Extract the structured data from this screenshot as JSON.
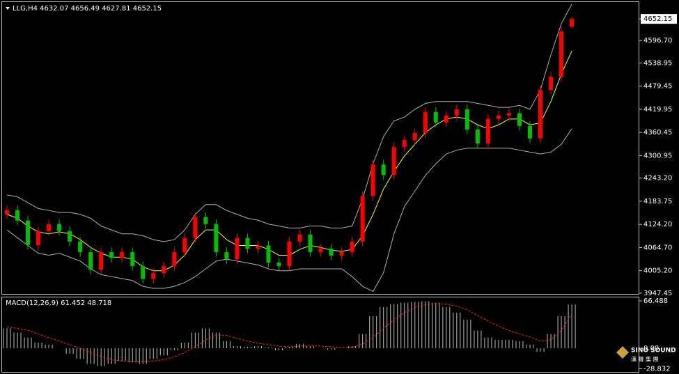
{
  "chart_data": [
    {
      "type": "candlestick",
      "title": "LLG,H4  4632.07 4656.49 4627.81 4652.15",
      "up_color": "#ff0000",
      "down_color": "#00c000",
      "open": [
        4150,
        4161,
        4134,
        4071,
        4107,
        4125,
        4107,
        4080,
        4053,
        4008,
        4053,
        4038,
        4053,
        4017,
        3984,
        3999,
        4017,
        4053,
        4089,
        4143,
        4125,
        4053,
        4035,
        4089,
        4062,
        4070,
        4026,
        4017,
        4080,
        4098,
        4053,
        4062,
        4044,
        4053,
        4080,
        4197,
        4278,
        4251,
        4323,
        4341,
        4359,
        4413,
        4386,
        4404,
        4420,
        4368,
        4332,
        4395,
        4404,
        4410,
        4377,
        4345,
        4470,
        4503,
        4632.07
      ],
      "high": [
        4173,
        4173,
        4146,
        4119,
        4137,
        4137,
        4119,
        4092,
        4065,
        4065,
        4065,
        4065,
        4065,
        4029,
        4011,
        4029,
        4065,
        4101,
        4155,
        4155,
        4137,
        4065,
        4101,
        4101,
        4082,
        4082,
        4038,
        4092,
        4110,
        4110,
        4074,
        4074,
        4065,
        4092,
        4209,
        4290,
        4290,
        4335,
        4353,
        4371,
        4425,
        4425,
        4416,
        4432,
        4432,
        4380,
        4407,
        4416,
        4422,
        4422,
        4389,
        4482,
        4515,
        4632,
        4656.49
      ],
      "low": [
        4138,
        4122,
        4059,
        4059,
        4095,
        4095,
        4068,
        4041,
        3996,
        3996,
        4026,
        4026,
        4005,
        3972,
        3972,
        3987,
        4005,
        4041,
        4077,
        4113,
        4041,
        4023,
        4023,
        4050,
        4050,
        4014,
        4005,
        4005,
        4068,
        4041,
        4041,
        4032,
        4032,
        4041,
        4068,
        4185,
        4239,
        4239,
        4311,
        4329,
        4347,
        4374,
        4374,
        4392,
        4356,
        4320,
        4320,
        4383,
        4392,
        4365,
        4333,
        4333,
        4458,
        4491,
        4627.81
      ],
      "close": [
        4161,
        4134,
        4071,
        4107,
        4125,
        4107,
        4080,
        4053,
        4008,
        4053,
        4038,
        4053,
        4017,
        3984,
        3999,
        4017,
        4053,
        4089,
        4143,
        4125,
        4053,
        4035,
        4089,
        4062,
        4070,
        4026,
        4017,
        4080,
        4098,
        4053,
        4062,
        4044,
        4053,
        4080,
        4197,
        4278,
        4251,
        4323,
        4341,
        4359,
        4413,
        4386,
        4404,
        4420,
        4368,
        4332,
        4395,
        4404,
        4410,
        4377,
        4345,
        4470,
        4503,
        4620,
        4652.15
      ],
      "lines": [
        {
          "color": "#ffff00",
          "values": [
            4150,
            4140,
            4120,
            4105,
            4100,
            4105,
            4100,
            4085,
            4065,
            4050,
            4040,
            4040,
            4035,
            4015,
            4005,
            4005,
            4020,
            4045,
            4085,
            4110,
            4110,
            4085,
            4070,
            4070,
            4070,
            4060,
            4045,
            4045,
            4060,
            4070,
            4065,
            4058,
            4055,
            4060,
            4095,
            4150,
            4215,
            4260,
            4300,
            4330,
            4360,
            4380,
            4395,
            4400,
            4395,
            4380,
            4370,
            4380,
            4395,
            4395,
            4380,
            4385,
            4440,
            4510,
            4570
          ]
        },
        {
          "color": "#b0b0b0",
          "values": [
            4200,
            4195,
            4180,
            4165,
            4160,
            4155,
            4155,
            4150,
            4140,
            4120,
            4110,
            4100,
            4100,
            4095,
            4085,
            4080,
            4085,
            4110,
            4150,
            4175,
            4175,
            4160,
            4150,
            4140,
            4135,
            4125,
            4120,
            4115,
            4115,
            4120,
            4120,
            4115,
            4115,
            4120,
            4190,
            4280,
            4350,
            4390,
            4400,
            4420,
            4435,
            4440,
            4440,
            4440,
            4440,
            4435,
            4430,
            4425,
            4425,
            4430,
            4420,
            4470,
            4560,
            4640,
            4690
          ]
        },
        {
          "color": "#b0b0b0",
          "values": [
            4110,
            4090,
            4070,
            4050,
            4045,
            4050,
            4040,
            4030,
            4010,
            3995,
            3990,
            3985,
            3980,
            3965,
            3960,
            3960,
            3965,
            3975,
            3990,
            4010,
            4030,
            4035,
            4030,
            4025,
            4020,
            4010,
            4005,
            4005,
            4010,
            4010,
            4010,
            4010,
            4010,
            3990,
            3965,
            3952,
            4000,
            4100,
            4170,
            4210,
            4250,
            4280,
            4305,
            4315,
            4320,
            4320,
            4320,
            4320,
            4320,
            4315,
            4310,
            4305,
            4310,
            4330,
            4370
          ]
        }
      ],
      "ylim": [
        3943.8,
        4691.8
      ],
      "yticks": [
        4652.15,
        {
          "value": 4596.7,
          "label": "4596.70"
        },
        4538.95,
        4479.45,
        4419.95,
        4360.45,
        4300.95,
        {
          "value": 4243.2,
          "label": "4243.20"
        },
        4183.75,
        {
          "value": 4124.2,
          "label": "4124.20"
        },
        {
          "value": 4064.7,
          "label": "4064.70"
        },
        {
          "value": 4005.2,
          "label": "4005.20"
        },
        3947.45
      ]
    },
    {
      "type": "macd",
      "title": "MACD(12,26,9) 61.452 48.718",
      "color": "#c0c0c0",
      "signal_color": "#ff2020",
      "values": [
        28,
        22,
        15,
        8,
        5,
        0,
        -8,
        -15,
        -22,
        -25,
        -22,
        -18,
        -20,
        -22,
        -15,
        -10,
        -3,
        8,
        22,
        28,
        22,
        10,
        3,
        2,
        3,
        1,
        -3,
        2,
        6,
        3,
        0,
        -2,
        0,
        3,
        20,
        45,
        58,
        62,
        64,
        65,
        66,
        64,
        58,
        50,
        40,
        25,
        15,
        12,
        12,
        10,
        5,
        -5,
        20,
        45,
        61.452
      ],
      "signal": [
        30,
        28,
        25,
        20,
        15,
        10,
        5,
        0,
        -6,
        -12,
        -16,
        -18,
        -19,
        -19,
        -18,
        -16,
        -12,
        -6,
        2,
        12,
        18,
        18,
        14,
        10,
        7,
        5,
        3,
        2,
        3,
        4,
        3,
        2,
        1,
        1,
        6,
        15,
        28,
        40,
        50,
        57,
        61,
        63,
        62,
        59,
        54,
        46,
        38,
        31,
        25,
        20,
        16,
        10,
        12,
        25,
        48.718
      ],
      "ylim": [
        -34.2,
        71.4
      ],
      "yticks": [
        66.488,
        {
          "value": 0,
          "label": "0.00"
        },
        -28.832
      ]
    }
  ],
  "logo": {
    "text": "SINO SOUND",
    "subtext": "漢 聲 集 團"
  }
}
